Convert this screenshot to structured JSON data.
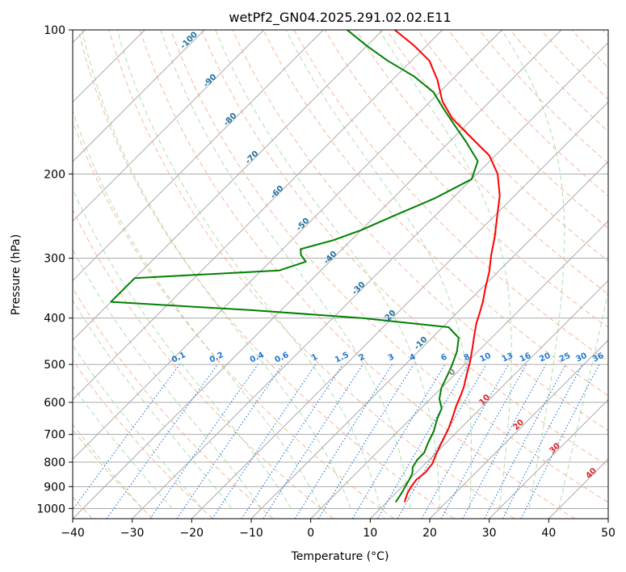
{
  "chart_data": {
    "type": "line",
    "title": "wetPf2_GN04.2025.291.02.02.E11",
    "xlabel": "Temperature (°C)",
    "ylabel": "Pressure (hPa)",
    "xlim": [
      -40,
      50
    ],
    "ylim": [
      1050,
      100
    ],
    "yscale": "log",
    "skew": "skew-T log-p",
    "grid": true,
    "x_ticks": [
      -40,
      -30,
      -20,
      -10,
      0,
      10,
      20,
      30,
      40,
      50
    ],
    "y_ticks": [
      1000,
      900,
      800,
      700,
      600,
      500,
      400,
      300,
      200,
      100
    ],
    "series": [
      {
        "role": "temperature",
        "color": "#ff0000",
        "points": [
          [
            13.0,
            970
          ],
          [
            12.0,
            930
          ],
          [
            11.5,
            900
          ],
          [
            11.2,
            870
          ],
          [
            11.5,
            840
          ],
          [
            11.2,
            805
          ],
          [
            10.5,
            780
          ],
          [
            9.5,
            740
          ],
          [
            8.0,
            680
          ],
          [
            7.0,
            650
          ],
          [
            5.5,
            610
          ],
          [
            4.5,
            580
          ],
          [
            3.5,
            555
          ],
          [
            2.0,
            525
          ],
          [
            0.5,
            495
          ],
          [
            -1.5,
            462
          ],
          [
            -3.5,
            432
          ],
          [
            -5.0,
            410
          ],
          [
            -6.0,
            393
          ],
          [
            -7.5,
            370
          ],
          [
            -9.5,
            345
          ],
          [
            -11.5,
            320
          ],
          [
            -14.0,
            295
          ],
          [
            -16.5,
            270
          ],
          [
            -19.5,
            245
          ],
          [
            -22.5,
            222
          ],
          [
            -26.5,
            200
          ],
          [
            -31.0,
            183
          ],
          [
            -37.0,
            168
          ],
          [
            -43.5,
            153
          ],
          [
            -48.0,
            141
          ],
          [
            -52.5,
            127
          ],
          [
            -57.0,
            116
          ],
          [
            -62.0,
            108
          ],
          [
            -68.0,
            100
          ]
        ]
      },
      {
        "role": "dewpoint",
        "color": "#008000",
        "points": [
          [
            11.5,
            970
          ],
          [
            11.0,
            930
          ],
          [
            10.5,
            900
          ],
          [
            10.0,
            870
          ],
          [
            9.5,
            845
          ],
          [
            8.5,
            820
          ],
          [
            8.0,
            790
          ],
          [
            8.0,
            765
          ],
          [
            7.0,
            730
          ],
          [
            6.0,
            690
          ],
          [
            4.5,
            650
          ],
          [
            3.5,
            618
          ],
          [
            1.5,
            590
          ],
          [
            0.0,
            560
          ],
          [
            -1.0,
            530
          ],
          [
            -2.0,
            503
          ],
          [
            -3.5,
            470
          ],
          [
            -5.5,
            440
          ],
          [
            -9.0,
            418
          ],
          [
            -25.0,
            400
          ],
          [
            -45.0,
            385
          ],
          [
            -70.0,
            370
          ],
          [
            -70.0,
            330
          ],
          [
            -47.0,
            318
          ],
          [
            -44.0,
            305
          ],
          [
            -46.0,
            295
          ],
          [
            -47.0,
            287
          ],
          [
            -43.0,
            275
          ],
          [
            -40.0,
            262
          ],
          [
            -37.0,
            245
          ],
          [
            -33.0,
            225
          ],
          [
            -30.0,
            205
          ],
          [
            -32.0,
            188
          ],
          [
            -37.0,
            172
          ],
          [
            -42.0,
            158
          ],
          [
            -47.0,
            145
          ],
          [
            -51.0,
            135
          ],
          [
            -57.0,
            125
          ],
          [
            -64.0,
            116
          ],
          [
            -70.0,
            108
          ],
          [
            -76.0,
            100
          ]
        ]
      }
    ],
    "dry_adiabat_labels": [
      "-100",
      "-90",
      "-80",
      "-70",
      "-60",
      "-50",
      "-40",
      "-30",
      "-20",
      "-10",
      "0",
      "10",
      "20",
      "30",
      "40"
    ],
    "mixing_ratio_labels": [
      "0.1",
      "0.2",
      "0.4",
      "0.6",
      "1",
      "1.5",
      "2",
      "3",
      "4",
      "6",
      "8",
      "10",
      "13",
      "16",
      "20",
      "25",
      "30",
      "36"
    ]
  }
}
